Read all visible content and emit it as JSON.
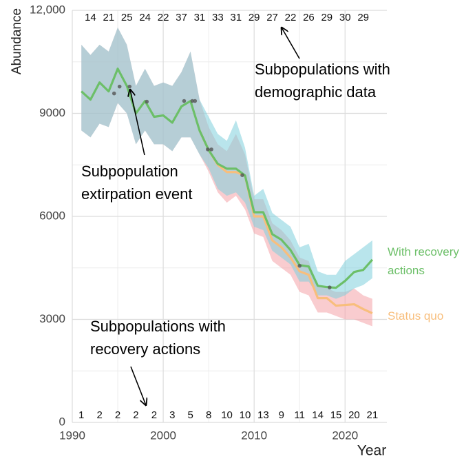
{
  "chart_data": {
    "type": "line",
    "x_title": "Year",
    "y_title": "Abundance",
    "xlim": [
      1990,
      2024.6
    ],
    "ylim": [
      0,
      12000
    ],
    "xticks": [
      1990,
      2000,
      2010,
      2020
    ],
    "yticks": [
      0,
      3000,
      6000,
      9000,
      {
        "value": 12000,
        "label": "12,000"
      }
    ],
    "x_minor_ticks": [
      1995,
      2005,
      2015
    ],
    "y_minor_ticks": [
      1500,
      4500,
      7500,
      10500
    ],
    "grid": true,
    "x": [
      1991,
      1992,
      1993,
      1994,
      1995,
      1996,
      1997,
      1998,
      1999,
      2000,
      2001,
      2002,
      2003,
      2004,
      2005,
      2006,
      2007,
      2008,
      2009,
      2010,
      2011,
      2012,
      2013,
      2014,
      2015,
      2016,
      2017,
      2018,
      2019,
      2020,
      2021,
      2022,
      2023
    ],
    "series": [
      {
        "name": "Status quo",
        "color": "#f8be7c",
        "ribbon_color": "#f4a3a8",
        "values": [
          null,
          null,
          null,
          null,
          null,
          null,
          null,
          null,
          null,
          null,
          null,
          null,
          null,
          8500,
          7930,
          7500,
          7290,
          7290,
          7190,
          6000,
          6000,
          5300,
          5100,
          4800,
          4400,
          4300,
          3620,
          3620,
          3400,
          3420,
          3440,
          3300,
          3180
        ],
        "lower": [
          8500,
          8300,
          8700,
          8600,
          9300,
          9000,
          8100,
          8500,
          8100,
          8100,
          7900,
          8300,
          8300,
          7800,
          7300,
          6700,
          6400,
          6600,
          6200,
          5500,
          5400,
          4700,
          4500,
          4300,
          3800,
          3700,
          3200,
          3200,
          3100,
          3000,
          3000,
          2900,
          2800
        ],
        "upper": [
          11000,
          10700,
          11000,
          10800,
          11500,
          11000,
          9800,
          10300,
          9800,
          9900,
          9800,
          10200,
          10800,
          9400,
          8600,
          8100,
          7900,
          8400,
          7800,
          6500,
          6500,
          5800,
          5600,
          5300,
          4800,
          4700,
          4000,
          3900,
          3800,
          3800,
          3900,
          3700,
          3600
        ]
      },
      {
        "name": "With recovery actions",
        "color": "#6cbf68",
        "ribbon_color": "#7fd0dd",
        "values": [
          9640,
          9400,
          9900,
          9640,
          10300,
          9800,
          9000,
          9360,
          8900,
          8940,
          8730,
          9200,
          9360,
          8500,
          7930,
          7530,
          7390,
          7390,
          7190,
          6120,
          6120,
          5480,
          5320,
          5020,
          4580,
          4540,
          3980,
          3940,
          3920,
          4120,
          4380,
          4440,
          4740
        ],
        "lower": [
          8500,
          8300,
          8700,
          8600,
          9300,
          9000,
          8100,
          8500,
          8100,
          8100,
          7900,
          8300,
          8300,
          7800,
          7400,
          6800,
          6600,
          6700,
          6400,
          5700,
          5600,
          5000,
          4800,
          4600,
          4100,
          4100,
          3700,
          3700,
          3600,
          3700,
          3900,
          4000,
          4200
        ],
        "upper": [
          11000,
          10700,
          11000,
          10800,
          11500,
          11000,
          9800,
          10300,
          9800,
          9900,
          9800,
          10200,
          10800,
          9400,
          8900,
          8400,
          8200,
          8800,
          8000,
          6600,
          6800,
          6100,
          5900,
          5700,
          5100,
          5200,
          4400,
          4300,
          4300,
          4700,
          4900,
          5100,
          5300
        ]
      }
    ],
    "observations": {
      "color": "#555555",
      "x": [
        1994.6,
        1995.2,
        1996.3,
        1998.2,
        2002.3,
        2003.2,
        2003.5,
        2004.9,
        2005.3,
        2008.7,
        2015,
        2018.3
      ],
      "y": [
        9580,
        9780,
        9780,
        9340,
        9360,
        9360,
        9360,
        7950,
        7950,
        7200,
        4560,
        3930
      ]
    },
    "top_counts": {
      "x": [
        1992,
        1994,
        1996,
        1998,
        2000,
        2002,
        2004,
        2006,
        2008,
        2010,
        2012,
        2014,
        2016,
        2018,
        2020,
        2022
      ],
      "values": [
        14,
        21,
        25,
        24,
        22,
        37,
        31,
        33,
        31,
        29,
        27,
        22,
        26,
        29,
        30,
        29
      ]
    },
    "bottom_counts": {
      "x": [
        1991,
        1993,
        1995,
        1997,
        1999,
        2001,
        2003,
        2005,
        2007,
        2009,
        2011,
        2013,
        2015,
        2017,
        2019,
        2021,
        2023
      ],
      "values": [
        1,
        2,
        2,
        2,
        2,
        3,
        5,
        8,
        10,
        10,
        13,
        9,
        11,
        14,
        15,
        20,
        21
      ]
    },
    "annotations": [
      "Subpopulations with demographic data",
      "Subpopulation extirpation event",
      "Subpopulations with recovery actions"
    ]
  }
}
